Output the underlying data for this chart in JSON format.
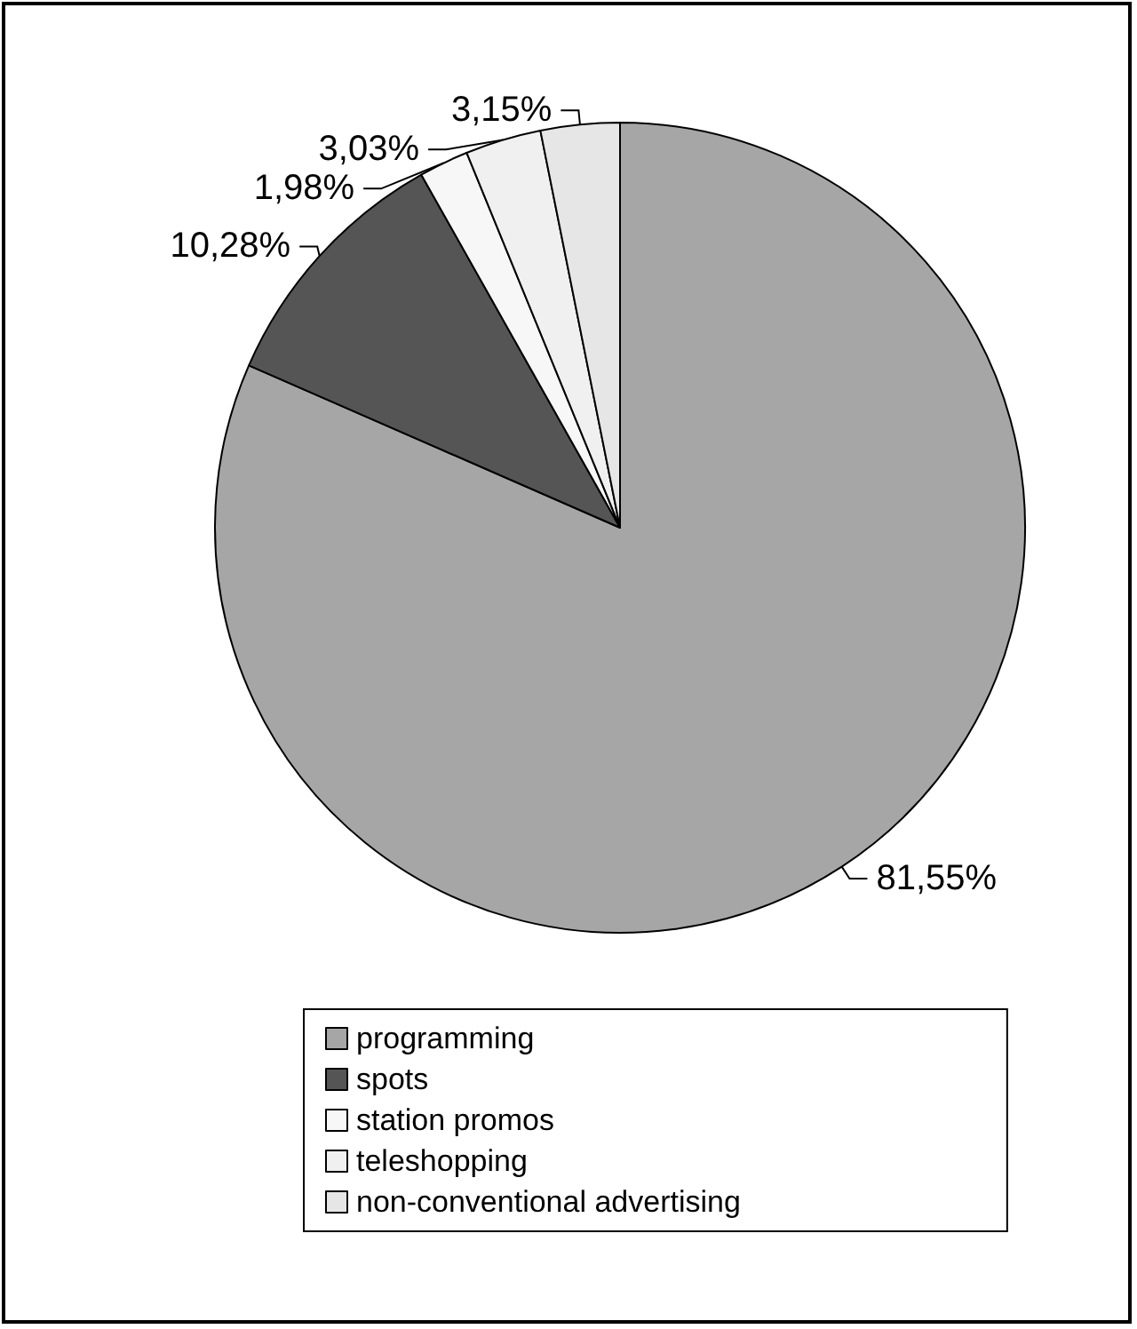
{
  "chart_data": {
    "type": "pie",
    "categories": [
      "programming",
      "spots",
      "station promos",
      "teleshopping",
      "non-conventional advertising"
    ],
    "values": [
      81.55,
      10.28,
      1.98,
      3.03,
      3.15
    ],
    "colors": [
      "#a6a6a6",
      "#555555",
      "#f7f7f7",
      "#f0f0f0",
      "#e6e6e6"
    ],
    "value_labels": [
      "81,55%",
      "10,28%",
      "1,98%",
      "3,03%",
      "3,15%"
    ],
    "legend": "bottom"
  }
}
